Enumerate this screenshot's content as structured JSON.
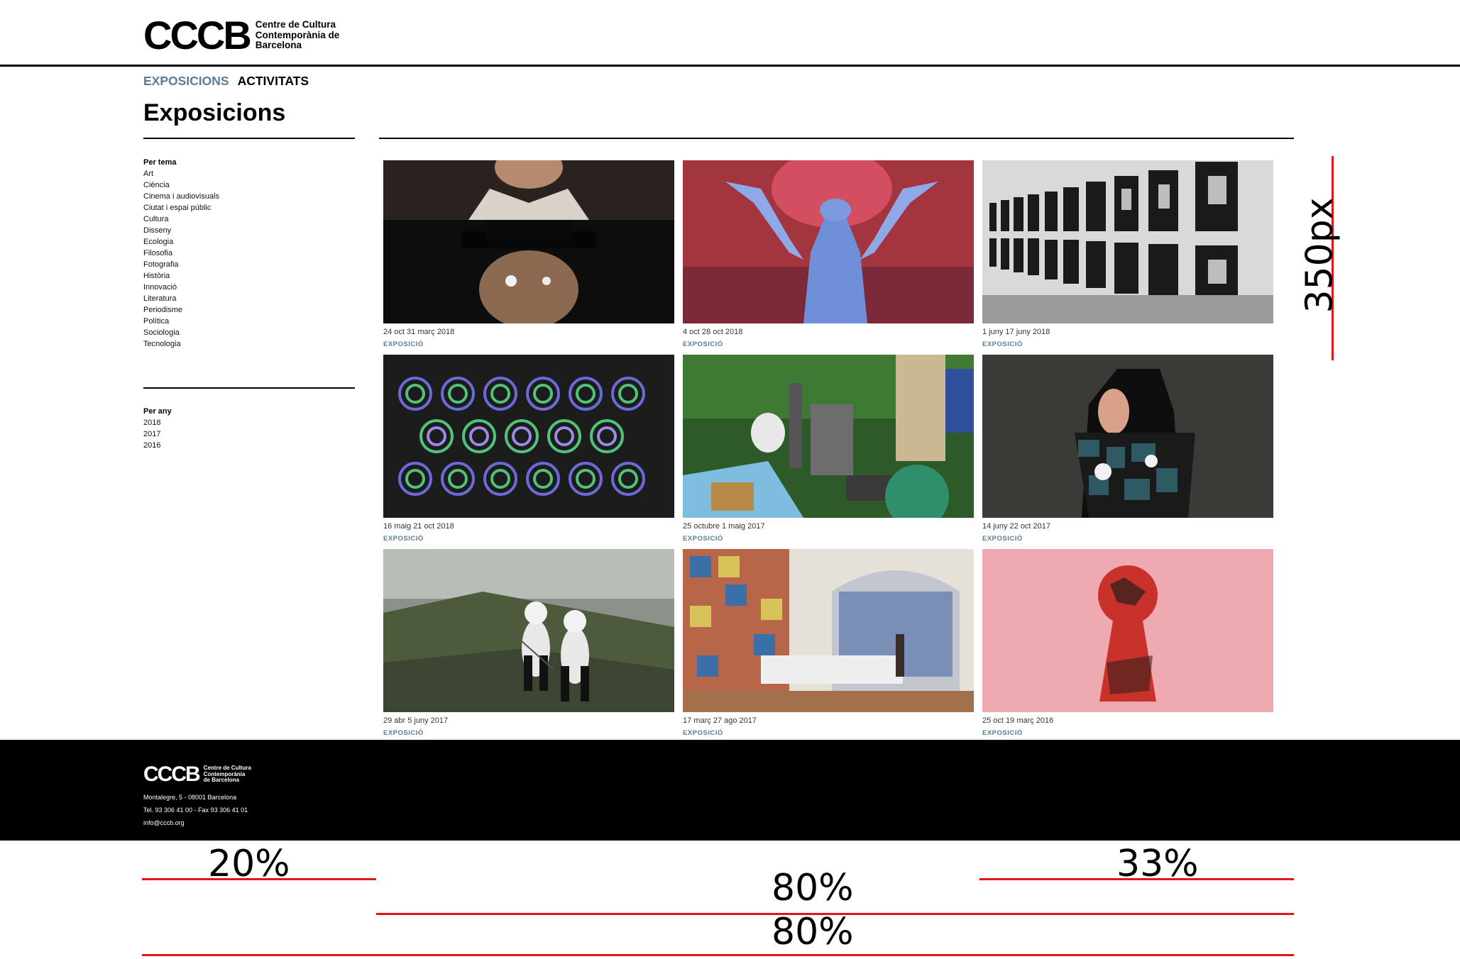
{
  "header": {
    "logo_mark": "CCCB",
    "logo_lines": [
      "Centre de Cultura",
      "Contemporània de",
      "Barcelona"
    ]
  },
  "nav": {
    "items": [
      "EXPOSICIONS",
      "ACTIVITATS"
    ]
  },
  "page_title": "Exposicions",
  "filters": {
    "topic_title": "Per tema",
    "topics": [
      "Art",
      "Ciència",
      "Cinema i audiovisuals",
      "Ciutat i espai públic",
      "Cultura",
      "Disseny",
      "Ecologia",
      "Filosofia",
      "Fotografia",
      "Història",
      "Innovació",
      "Literatura",
      "Periodisme",
      "Política",
      "Sociologia",
      "Tecnologia"
    ],
    "year_title": "Per any",
    "years": [
      "2018",
      "2017",
      "2016"
    ]
  },
  "cards": [
    {
      "dates": "24 oct  31 març  2018",
      "type": "EXPOSICIÓ"
    },
    {
      "dates": "4 oct  28 oct  2018",
      "type": "EXPOSICIÓ"
    },
    {
      "dates": "1 juny  17 juny  2018",
      "type": "EXPOSICIÓ"
    },
    {
      "dates": "16 maig  21 oct  2018",
      "type": "EXPOSICIÓ"
    },
    {
      "dates": "25 octubre  1 maig  2017",
      "type": "EXPOSICIÓ"
    },
    {
      "dates": "14 juny  22 oct  2017",
      "type": "EXPOSICIÓ"
    },
    {
      "dates": "29 abr  5 juny  2017",
      "type": "EXPOSICIÓ"
    },
    {
      "dates": "17 març  27 ago  2017",
      "type": "EXPOSICIÓ"
    },
    {
      "dates": "25 oct  19 març  2016",
      "type": "EXPOSICIÓ"
    }
  ],
  "footer": {
    "logo_mark": "CCCB",
    "logo_lines": [
      "Centre de Cultura",
      "Contemporània",
      "de Barcelona"
    ],
    "address": "Montalegre, 5 - 08001 Barcelona",
    "phone": "Tel. 93 306 41 00 - Fax 93 306 41 01",
    "email": "info@cccb.org"
  },
  "annotations": {
    "height_label": "350px",
    "sidebar_width": "20%",
    "column_width": "33%",
    "main_width": "80%",
    "total_width": "80%",
    "line_color": "#e0161d"
  }
}
